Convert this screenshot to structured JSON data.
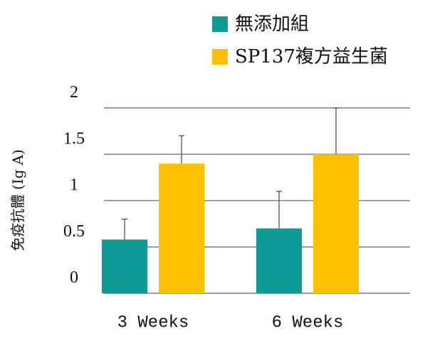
{
  "chart_data": {
    "type": "bar",
    "categories": [
      "3 Weeks",
      "6 Weeks"
    ],
    "series": [
      {
        "name": "無添加組",
        "color": "#0e9a96",
        "values": [
          0.58,
          0.7
        ],
        "errors": [
          0.22,
          0.4
        ]
      },
      {
        "name": "SP137複方益生菌",
        "color": "#ffc000",
        "values": [
          1.4,
          1.5
        ],
        "errors": [
          0.3,
          0.5
        ]
      }
    ],
    "ylabel": "免疫抗體 (Ig A)",
    "ylim": [
      0,
      2
    ],
    "yticks": [
      "0",
      "0.5",
      "1",
      "1.5",
      "2"
    ],
    "grid": true,
    "legend_position": "top-right"
  }
}
